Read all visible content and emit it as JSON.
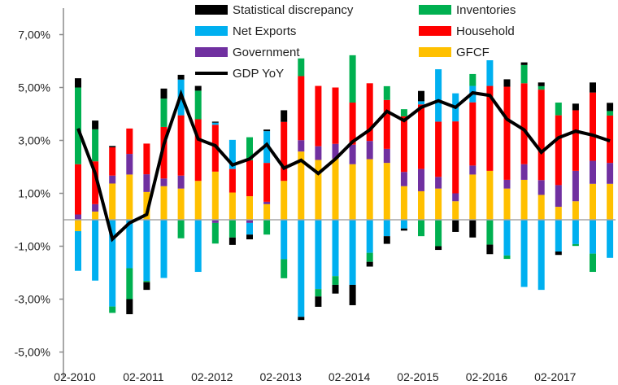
{
  "chart_data": {
    "type": "bar",
    "stacked": true,
    "title": "",
    "xlabel": "",
    "ylabel": "",
    "ylim": [
      -6,
      8
    ],
    "yticks": [
      "7,00%",
      "5,00%",
      "3,00%",
      "1,00%",
      "-1,00%",
      "-3,00%",
      "-5,00%"
    ],
    "ytick_values": [
      7,
      5,
      3,
      1,
      -1,
      -3,
      -5
    ],
    "xtick_labels": [
      "02-2010",
      "02-2011",
      "02-2012",
      "02-2013",
      "02-2014",
      "02-2015",
      "02-2016",
      "02-2017"
    ],
    "categories_per_label": 4,
    "grid": false,
    "legend_placement": "top",
    "series": [
      {
        "name": "GFCF",
        "color": "#ffc000",
        "values": [
          -0.43,
          0.31,
          1.37,
          1.71,
          1.05,
          1.27,
          1.18,
          1.47,
          1.82,
          1.03,
          0.89,
          0.59,
          1.47,
          2.58,
          2.26,
          2.31,
          2.1,
          2.29,
          2.15,
          1.27,
          1.08,
          1.18,
          0.7,
          1.71,
          1.85,
          1.18,
          1.51,
          0.94,
          0.49,
          0.7,
          1.36,
          1.36
        ]
      },
      {
        "name": "Government",
        "color": "#7030a0",
        "values": [
          0.2,
          0.28,
          0.3,
          0.78,
          0.67,
          0.29,
          0.49,
          0,
          -0.12,
          0,
          -0.12,
          0.09,
          0,
          0.43,
          0.52,
          0.56,
          0.74,
          0.69,
          0.53,
          0.54,
          0.84,
          0.44,
          0.3,
          0.34,
          0,
          0.33,
          0.59,
          0.56,
          0.82,
          1.15,
          0.87,
          0.79
        ]
      },
      {
        "name": "Household",
        "color": "#ff0000",
        "values": [
          1.9,
          1.62,
          1.07,
          0.96,
          1.16,
          1.95,
          2.28,
          2.33,
          1.77,
          0.89,
          1.36,
          1.47,
          2.23,
          2.42,
          2.28,
          2.13,
          1.59,
          2.18,
          1.85,
          2.1,
          2.44,
          2.09,
          2.72,
          2.39,
          3.21,
          3.52,
          3.06,
          3.42,
          2.64,
          2.29,
          2.58,
          1.79
        ]
      },
      {
        "name": "Net Exports",
        "color": "#00b0f0",
        "values": [
          -1.5,
          -2.3,
          -3.28,
          -1.83,
          -2.31,
          -2.2,
          1.35,
          -1.97,
          0.08,
          1.1,
          -0.44,
          1.2,
          -1.49,
          -3.67,
          -2.62,
          -2.13,
          -2.46,
          -1.25,
          -0.62,
          -0.33,
          0.12,
          1.98,
          1.06,
          0.62,
          0.97,
          -1.35,
          -2.54,
          -2.65,
          -1.2,
          -0.92,
          -1.28,
          -1.44
        ]
      },
      {
        "name": "Inventories",
        "color": "#00b050",
        "values": [
          2.9,
          1.21,
          -0.24,
          -1.17,
          -0.05,
          1.07,
          -0.7,
          1.08,
          -0.78,
          -0.67,
          0.87,
          -0.56,
          -0.72,
          0.67,
          -0.28,
          -0.33,
          1.79,
          -0.34,
          0.52,
          0.27,
          -0.62,
          -1.0,
          0,
          0.45,
          -0.94,
          -0.13,
          0.69,
          0.13,
          0.48,
          -0.07,
          -0.69,
          0.17
        ]
      },
      {
        "name": "Statistical discrepancy",
        "color": "#000000",
        "values": [
          0.35,
          0.33,
          0.05,
          -0.57,
          -0.29,
          0.38,
          0.18,
          0.18,
          0.04,
          -0.28,
          -0.18,
          0.06,
          0.44,
          -0.12,
          -0.39,
          -0.33,
          -0.77,
          -0.18,
          -0.29,
          -0.08,
          0.39,
          -0.14,
          -0.46,
          -0.67,
          -0.36,
          0.28,
          0.1,
          0.14,
          -0.13,
          0.25,
          0.38,
          0.31
        ]
      }
    ],
    "line": {
      "name": "GDP YoY",
      "color": "#000000",
      "values": [
        3.45,
        1.75,
        -0.73,
        -0.12,
        0.2,
        2.85,
        4.75,
        3.05,
        2.8,
        2.07,
        2.3,
        2.85,
        1.95,
        2.25,
        1.75,
        2.3,
        2.95,
        3.4,
        4.1,
        3.75,
        4.25,
        4.5,
        4.25,
        4.8,
        4.7,
        3.8,
        3.4,
        2.55,
        3.1,
        3.35,
        3.2,
        2.98
      ]
    },
    "legend": [
      {
        "label": "Statistical discrepancy",
        "color": "#000000",
        "kind": "bar"
      },
      {
        "label": "Inventories",
        "color": "#00b050",
        "kind": "bar"
      },
      {
        "label": "Net Exports",
        "color": "#00b0f0",
        "kind": "bar"
      },
      {
        "label": "Household",
        "color": "#ff0000",
        "kind": "bar"
      },
      {
        "label": "Government",
        "color": "#7030a0",
        "kind": "bar"
      },
      {
        "label": "GFCF",
        "color": "#ffc000",
        "kind": "bar"
      },
      {
        "label": "GDP YoY",
        "color": "#000000",
        "kind": "line"
      }
    ]
  }
}
